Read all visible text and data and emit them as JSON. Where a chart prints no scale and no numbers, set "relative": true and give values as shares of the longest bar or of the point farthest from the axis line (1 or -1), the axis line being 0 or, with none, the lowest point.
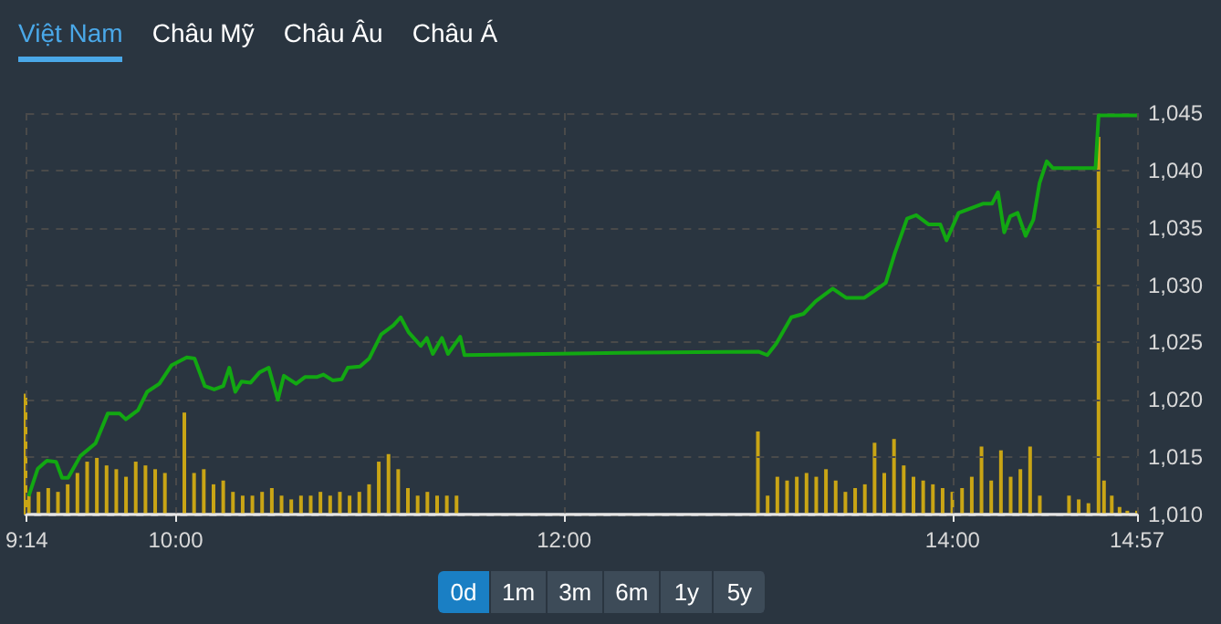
{
  "chart_data": [
    {
      "type": "line",
      "color": "#12a812",
      "annotations": [
        "Việt Nam",
        "Châu Mỹ",
        "Châu Âu",
        "Châu Á",
        "0d",
        "1m",
        "3m",
        "6m",
        "1y",
        "5y"
      ],
      "x": [
        9.243,
        9.29,
        9.337,
        9.384,
        9.415,
        9.446,
        9.509,
        9.587,
        9.65,
        9.712,
        9.743,
        9.806,
        9.853,
        9.916,
        9.978,
        10.057,
        10.097,
        10.15,
        10.198,
        10.245,
        10.276,
        10.307,
        10.339,
        10.386,
        10.432,
        10.479,
        10.526,
        10.557,
        10.62,
        10.667,
        10.729,
        10.761,
        10.808,
        10.855,
        10.886,
        10.949,
        10.996,
        11.058,
        11.121,
        11.158,
        11.199,
        11.262,
        11.293,
        11.324,
        11.371,
        11.402,
        11.465,
        11.487,
        12.294,
        13.0,
        13.046,
        13.092,
        13.17,
        13.233,
        13.296,
        13.383,
        13.452,
        13.546,
        13.656,
        13.703,
        13.766,
        13.813,
        13.876,
        13.937,
        13.969,
        14.031,
        14.156,
        14.203,
        14.234,
        14.266,
        14.297,
        14.335,
        14.376,
        14.416,
        14.448,
        14.485,
        14.517,
        14.736,
        14.752,
        14.95
      ],
      "values": [
        1011.6,
        1014.0,
        1014.7,
        1014.6,
        1013.2,
        1013.2,
        1015.1,
        1016.2,
        1018.8,
        1018.8,
        1018.3,
        1019.1,
        1020.7,
        1021.4,
        1023.0,
        1023.7,
        1023.6,
        1021.2,
        1020.9,
        1021.2,
        1022.8,
        1020.7,
        1021.6,
        1021.5,
        1022.4,
        1022.8,
        1020.0,
        1022.1,
        1021.4,
        1022.0,
        1022.0,
        1022.2,
        1021.7,
        1021.8,
        1022.8,
        1022.9,
        1023.6,
        1025.7,
        1026.5,
        1027.2,
        1025.9,
        1024.7,
        1025.4,
        1024.0,
        1025.4,
        1024.0,
        1025.5,
        1023.9,
        1024.1,
        1024.2,
        1023.9,
        1024.9,
        1027.2,
        1027.5,
        1028.6,
        1029.7,
        1028.9,
        1028.9,
        1030.2,
        1032.8,
        1035.8,
        1036.1,
        1035.3,
        1035.3,
        1033.9,
        1036.3,
        1037.1,
        1037.1,
        1038.1,
        1034.6,
        1036.0,
        1036.3,
        1034.3,
        1035.7,
        1038.9,
        1040.8,
        1040.2,
        1040.2,
        1044.8,
        1044.8
      ],
      "xlim": [
        9.2333,
        14.95
      ],
      "xticks": [
        {
          "value": 9.2333,
          "label": "9:14"
        },
        {
          "value": 10,
          "label": "10:00"
        },
        {
          "value": 12,
          "label": "12:00"
        },
        {
          "value": 14,
          "label": "14:00"
        },
        {
          "value": 14.95,
          "label": "14:57"
        }
      ],
      "ylim": [
        1010,
        1045
      ],
      "yticks": [
        {
          "value": 1010,
          "label": "1,010"
        },
        {
          "value": 1015,
          "label": "1,015"
        },
        {
          "value": 1020,
          "label": "1,020"
        },
        {
          "value": 1025,
          "label": "1,025"
        },
        {
          "value": 1030,
          "label": "1,030"
        },
        {
          "value": 1035,
          "label": "1,035"
        },
        {
          "value": 1040,
          "label": "1,040"
        },
        {
          "value": 1045,
          "label": "1,045"
        }
      ],
      "grid": true,
      "marker": "none"
    },
    {
      "type": "bar",
      "relative": true,
      "color": "#c9a515",
      "xlim": [
        9.2333,
        14.95
      ],
      "x": [
        9.2333,
        9.25,
        9.3,
        9.35,
        9.4,
        9.45,
        9.5,
        9.55,
        9.6,
        9.65,
        9.7,
        9.75,
        9.8,
        9.85,
        9.9,
        9.95,
        10.05,
        10.1,
        10.15,
        10.2,
        10.25,
        10.3,
        10.35,
        10.4,
        10.45,
        10.5,
        10.55,
        10.6,
        10.65,
        10.7,
        10.75,
        10.8,
        10.85,
        10.9,
        10.95,
        11.0,
        11.05,
        11.1,
        11.15,
        11.2,
        11.25,
        11.3,
        11.35,
        11.4,
        11.45,
        13.0,
        13.05,
        13.1,
        13.15,
        13.2,
        13.25,
        13.3,
        13.35,
        13.4,
        13.45,
        13.5,
        13.55,
        13.6,
        13.65,
        13.7,
        13.75,
        13.8,
        13.85,
        13.9,
        13.95,
        14.0,
        14.05,
        14.1,
        14.15,
        14.2,
        14.25,
        14.3,
        14.35,
        14.4,
        14.45,
        14.6,
        14.65,
        14.7,
        14.752,
        14.78,
        14.82,
        14.86,
        14.9,
        14.95
      ],
      "values": [
        0.32,
        0.05,
        0.06,
        0.07,
        0.06,
        0.08,
        0.11,
        0.14,
        0.15,
        0.13,
        0.12,
        0.1,
        0.14,
        0.13,
        0.12,
        0.11,
        0.27,
        0.11,
        0.12,
        0.08,
        0.09,
        0.06,
        0.05,
        0.05,
        0.06,
        0.07,
        0.05,
        0.04,
        0.05,
        0.05,
        0.06,
        0.05,
        0.06,
        0.05,
        0.06,
        0.08,
        0.14,
        0.16,
        0.12,
        0.07,
        0.05,
        0.06,
        0.05,
        0.05,
        0.05,
        0.22,
        0.05,
        0.1,
        0.09,
        0.1,
        0.11,
        0.1,
        0.12,
        0.09,
        0.06,
        0.07,
        0.08,
        0.19,
        0.11,
        0.2,
        0.13,
        0.1,
        0.09,
        0.08,
        0.07,
        0.06,
        0.07,
        0.1,
        0.18,
        0.09,
        0.17,
        0.1,
        0.12,
        0.18,
        0.05,
        0.05,
        0.04,
        0.03,
        1,
        0.09,
        0.05,
        0.02,
        0.01,
        0.01
      ]
    }
  ]
}
